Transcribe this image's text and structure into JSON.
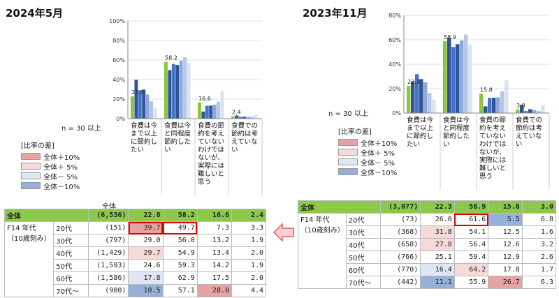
{
  "panels": {
    "p2024": {
      "title": "2024年5月"
    },
    "p2023": {
      "title": "2023年11月"
    }
  },
  "note": "n = 30 以上",
  "n_label": "全体",
  "legend": {
    "title": "[比率の差]",
    "items": [
      {
        "label": "全体＋10%",
        "color": "#e6a3a3"
      },
      {
        "label": "全体＋ 5%",
        "color": "#f6d9d9"
      },
      {
        "label": "全体－ 5%",
        "color": "#dfe6f4"
      },
      {
        "label": "全体－10%",
        "color": "#97b0d8"
      }
    ]
  },
  "group_label": "F14 年代（10歳刻み）",
  "colors": {
    "total": "#8cc63f",
    "series": [
      "#2f5597",
      "#4472c4",
      "#2f5597",
      "#8ea9db",
      "#b4c7e7",
      "#d9e1f2"
    ]
  },
  "chart_data": [
    {
      "type": "bar",
      "title": "2024年5月",
      "categories": [
        "食費は今まで以上に節約したい",
        "食費は今と同程度節約したい",
        "食費の節約を考えていないわけではないが、実際には難しいと思う",
        "食費での節約は考えていない"
      ],
      "ylim": [
        0,
        100
      ],
      "yticks": [
        "0%",
        "20%",
        "40%",
        "60%",
        "80%",
        "100%"
      ],
      "row_labels": [
        "全体",
        "20代",
        "30代",
        "40代",
        "50代",
        "60代",
        "70代～"
      ],
      "n": [
        "(6,536)",
        "(151)",
        "(797)",
        "(1,429)",
        "(1,593)",
        "(1,586)",
        "(980)"
      ],
      "series": [
        {
          "name": "全体",
          "values": [
            22.8,
            58.2,
            16.6,
            2.4
          ]
        },
        {
          "name": "20代",
          "values": [
            39.7,
            49.7,
            7.3,
            3.3
          ]
        },
        {
          "name": "30代",
          "values": [
            29.0,
            56.0,
            13.2,
            1.9
          ]
        },
        {
          "name": "40代",
          "values": [
            29.7,
            54.9,
            13.4,
            2.0
          ]
        },
        {
          "name": "50代",
          "values": [
            24.6,
            59.3,
            14.2,
            1.9
          ]
        },
        {
          "name": "60代",
          "values": [
            17.8,
            62.9,
            17.5,
            2.0
          ]
        },
        {
          "name": "70代～",
          "values": [
            10.5,
            57.1,
            28.0,
            4.4
          ]
        }
      ],
      "labels_shown": [
        "22.8",
        "58.2",
        "16.6",
        "2.4"
      ],
      "table": [
        [
          "22.8",
          "58.2",
          "16.6",
          "2.4"
        ],
        [
          "39.7",
          "49.7",
          "7.3",
          "3.3"
        ],
        [
          "29.0",
          "56.0",
          "13.2",
          "1.9"
        ],
        [
          "29.7",
          "54.9",
          "13.4",
          "2.0"
        ],
        [
          "24.6",
          "59.3",
          "14.2",
          "1.9"
        ],
        [
          "17.8",
          "62.9",
          "17.5",
          "2.0"
        ],
        [
          "10.5",
          "57.1",
          "28.0",
          "4.4"
        ]
      ],
      "highlight": [
        [
          "",
          "",
          "",
          ""
        ],
        [
          "red",
          "",
          "",
          ""
        ],
        [
          "",
          "",
          "",
          ""
        ],
        [
          "pink",
          "",
          "",
          ""
        ],
        [
          "",
          "",
          "",
          ""
        ],
        [
          "lblue",
          "",
          "",
          ""
        ],
        [
          "blue",
          "",
          "red",
          ""
        ]
      ],
      "boxed": [
        [
          1,
          0
        ],
        [
          1,
          1
        ]
      ]
    },
    {
      "type": "bar",
      "title": "2023年11月",
      "categories": [
        "食費は今まで以上に節約したい",
        "食費は今と同程度節約したい",
        "食費の節約を考えていないわけではないが、実際には難しいと思う",
        "食費での節約は考えていない"
      ],
      "ylim": [
        0,
        80
      ],
      "yticks": [
        "0%",
        "20%",
        "40%",
        "60%",
        "80%"
      ],
      "row_labels": [
        "全体",
        "20代",
        "30代",
        "40代",
        "50代",
        "60代",
        "70代～"
      ],
      "n": [
        "(3,077)",
        "(73)",
        "(368)",
        "(658)",
        "(766)",
        "(770)",
        "(442)"
      ],
      "series": [
        {
          "name": "全体",
          "values": [
            22.3,
            58.9,
            15.8,
            3.0
          ]
        },
        {
          "name": "20代",
          "values": [
            26.0,
            61.6,
            5.5,
            6.8
          ]
        },
        {
          "name": "30代",
          "values": [
            31.8,
            54.1,
            12.5,
            1.6
          ]
        },
        {
          "name": "40代",
          "values": [
            27.8,
            56.4,
            12.6,
            3.2
          ]
        },
        {
          "name": "50代",
          "values": [
            25.1,
            59.4,
            12.9,
            2.6
          ]
        },
        {
          "name": "60代",
          "values": [
            16.4,
            64.2,
            17.8,
            1.7
          ]
        },
        {
          "name": "70代～",
          "values": [
            11.1,
            55.9,
            26.7,
            6.3
          ]
        }
      ],
      "labels_shown": [
        "22.3",
        "58.9",
        "15.8",
        "3.0"
      ],
      "table": [
        [
          "22.3",
          "58.9",
          "15.8",
          "3.0"
        ],
        [
          "26.0",
          "61.6",
          "5.5",
          "6.8"
        ],
        [
          "31.8",
          "54.1",
          "12.5",
          "1.6"
        ],
        [
          "27.8",
          "56.4",
          "12.6",
          "3.2"
        ],
        [
          "25.1",
          "59.4",
          "12.9",
          "2.6"
        ],
        [
          "16.4",
          "64.2",
          "17.8",
          "1.7"
        ],
        [
          "11.1",
          "55.9",
          "26.7",
          "6.3"
        ]
      ],
      "highlight": [
        [
          "",
          "",
          "",
          ""
        ],
        [
          "",
          "",
          "blue",
          ""
        ],
        [
          "pink",
          "",
          "",
          ""
        ],
        [
          "pink",
          "",
          "",
          ""
        ],
        [
          "",
          "",
          "",
          ""
        ],
        [
          "lblue",
          "pink",
          "",
          ""
        ],
        [
          "blue",
          "",
          "red",
          ""
        ]
      ],
      "boxed": [
        [
          1,
          1
        ]
      ]
    }
  ]
}
